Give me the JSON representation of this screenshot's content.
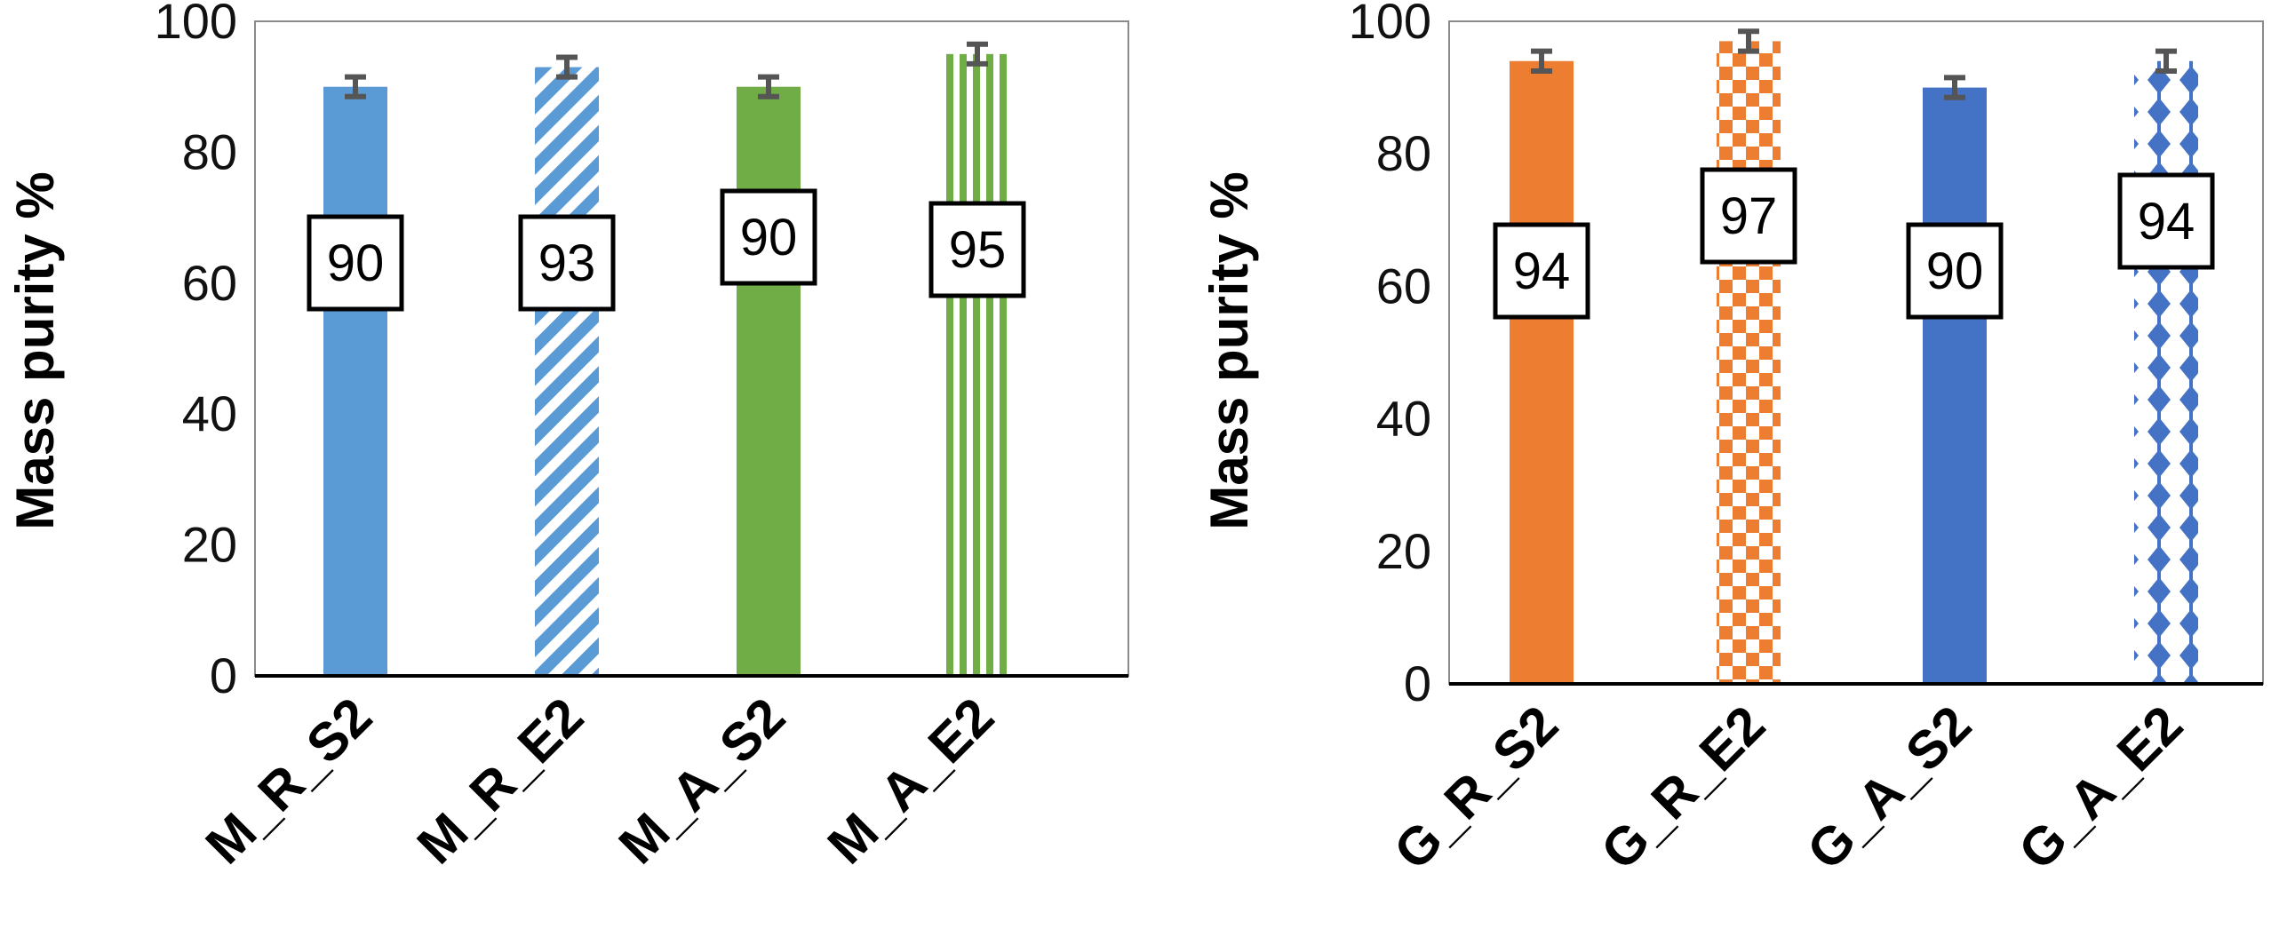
{
  "chart_data": [
    {
      "type": "bar",
      "title": "",
      "xlabel": "",
      "ylabel": "Mass purity %",
      "ylim": [
        0,
        100
      ],
      "yticks": [
        0,
        20,
        40,
        60,
        80,
        100
      ],
      "grid": false,
      "categories": [
        "M_R_S2",
        "M_R_E2",
        "M_A_S2",
        "M_A_E2"
      ],
      "values": [
        90,
        93,
        90,
        95
      ],
      "data_labels": [
        "90",
        "93",
        "90",
        "95"
      ],
      "error_bars": [
        1.5,
        1.5,
        1.5,
        1.5
      ],
      "fills": [
        {
          "style": "solid",
          "color": "#5B9BD5"
        },
        {
          "style": "diagonal-stripes",
          "color": "#5B9BD5"
        },
        {
          "style": "solid",
          "color": "#70AD47"
        },
        {
          "style": "vertical-stripes",
          "color": "#70AD47"
        }
      ]
    },
    {
      "type": "bar",
      "title": "",
      "xlabel": "",
      "ylabel": "Mass purity %",
      "ylim": [
        0,
        100
      ],
      "yticks": [
        0,
        20,
        40,
        60,
        80,
        100
      ],
      "grid": false,
      "categories": [
        "G_R_S2",
        "G_R_E2",
        "G_A_S2",
        "G_A_E2"
      ],
      "values": [
        94,
        97,
        90,
        94
      ],
      "data_labels": [
        "94",
        "97",
        "90",
        "94"
      ],
      "error_bars": [
        1.5,
        1.5,
        1.5,
        1.5
      ],
      "fills": [
        {
          "style": "solid",
          "color": "#ED7D31"
        },
        {
          "style": "checkerboard",
          "color": "#ED7D31"
        },
        {
          "style": "solid",
          "color": "#4472C4"
        },
        {
          "style": "diamonds",
          "color": "#4472C4"
        }
      ]
    }
  ]
}
